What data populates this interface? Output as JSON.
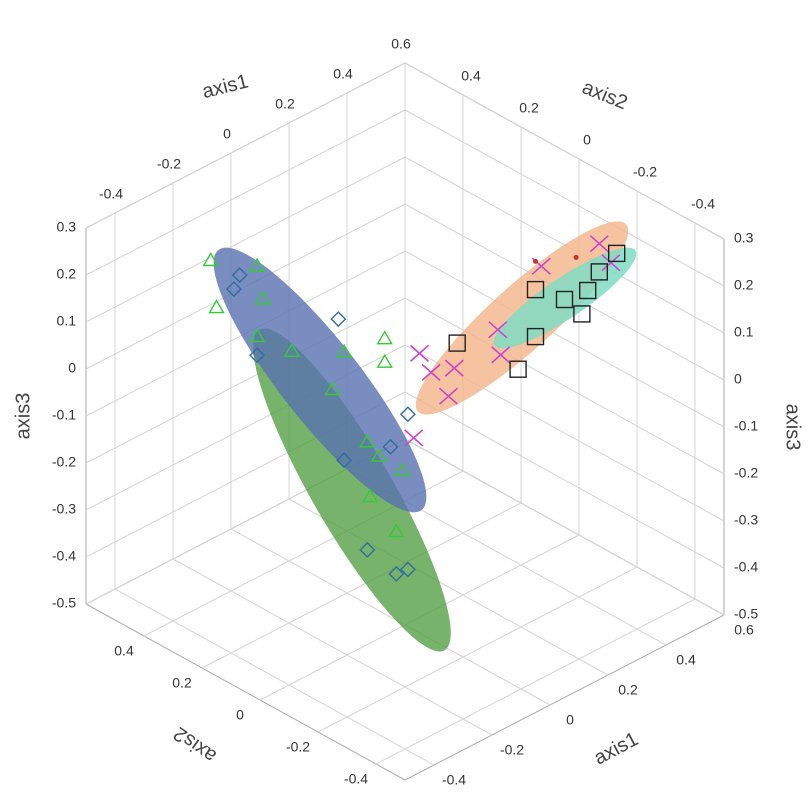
{
  "chart_data": {
    "type": "scatter3d",
    "x_label": "axis1",
    "y_label": "axis2",
    "z_label": "axis3",
    "xlim": [
      -0.5,
      0.6
    ],
    "ylim": [
      -0.5,
      0.6
    ],
    "zlim": [
      -0.5,
      0.3
    ],
    "xticks": [
      -0.4,
      -0.2,
      0,
      0.2,
      0.4,
      0.6
    ],
    "yticks": [
      -0.4,
      -0.2,
      0,
      0.2,
      0.4
    ],
    "zticks": [
      -0.5,
      -0.4,
      -0.3,
      -0.2,
      -0.1,
      0,
      0.1,
      0.2,
      0.3
    ],
    "grid": true,
    "series": [
      {
        "marker": "triangle",
        "color": "#33cc33",
        "x": [
          -0.11,
          -0.03,
          -0.1,
          -0.02,
          -0.03,
          0.03,
          0.12,
          0.19,
          0.19,
          0.1,
          0.16,
          0.18,
          0.22,
          0.17,
          0.21
        ],
        "y": [
          0.56,
          0.48,
          0.55,
          0.47,
          0.48,
          0.42,
          0.33,
          0.26,
          0.26,
          0.35,
          0.29,
          0.27,
          0.23,
          0.29,
          0.24
        ],
        "z": [
          0.12,
          0.11,
          0.02,
          0.04,
          -0.04,
          -0.07,
          -0.07,
          -0.04,
          -0.09,
          -0.15,
          -0.26,
          -0.29,
          -0.32,
          -0.38,
          -0.45
        ]
      },
      {
        "marker": "diamond",
        "color": "#2f6f9f",
        "x": [
          -0.07,
          -0.06,
          0.11,
          -0.03,
          0.23,
          0.2,
          0.12,
          0.16,
          0.21,
          0.23
        ],
        "y": [
          0.52,
          0.51,
          0.34,
          0.48,
          0.22,
          0.25,
          0.33,
          0.29,
          0.24,
          0.22
        ],
        "z": [
          0.06,
          0.09,
          0,
          -0.08,
          -0.2,
          -0.27,
          -0.3,
          -0.49,
          -0.54,
          -0.53
        ]
      },
      {
        "marker": "x",
        "color": "#cc44cc",
        "x": [
          0.25,
          0.27,
          0.31,
          0.39,
          0.39,
          0.24,
          0.3,
          0.46,
          0.56,
          0.58
        ],
        "y": [
          0.2,
          0.18,
          0.14,
          0.06,
          0.07,
          0.21,
          0.15,
          -0.01,
          -0.11,
          -0.13
        ],
        "z": [
          -0.07,
          -0.11,
          -0.1,
          -0.07,
          -0.02,
          -0.25,
          -0.16,
          0.12,
          0.17,
          0.13
        ]
      },
      {
        "marker": "square",
        "color": "#222222",
        "x": [
          0.32,
          0.45,
          0.45,
          0.5,
          0.53,
          0.59,
          0.56,
          0.42,
          0.54
        ],
        "y": [
          0.14,
          0,
          0,
          -0.05,
          -0.08,
          -0.14,
          -0.11,
          0.03,
          -0.09
        ],
        "z": [
          -0.05,
          0.07,
          -0.03,
          0.05,
          0.02,
          0.15,
          0.11,
          -0.1,
          0.07
        ]
      },
      {
        "marker": "dot",
        "color": "#c0392b",
        "x": [
          0.45,
          0.52
        ],
        "y": [
          0,
          -0.07
        ],
        "z": [
          0.13,
          0.14
        ]
      }
    ]
  }
}
